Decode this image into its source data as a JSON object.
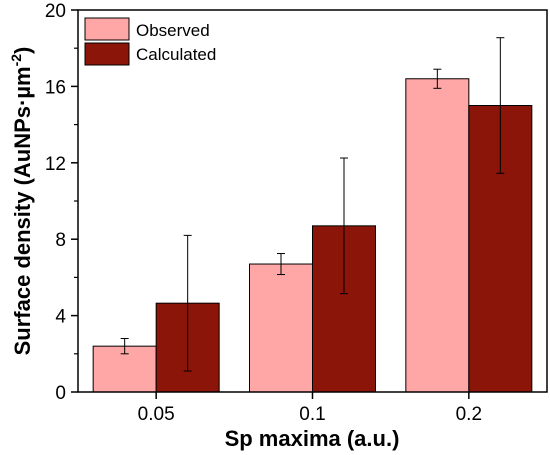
{
  "chart_data": {
    "type": "bar",
    "categories": [
      "0.05",
      "0.1",
      "0.2"
    ],
    "series": [
      {
        "name": "Observed",
        "color": "#ffa6a6",
        "values": [
          2.4,
          6.7,
          16.4
        ],
        "errors": [
          0.4,
          0.55,
          0.5
        ]
      },
      {
        "name": "Calculated",
        "color": "#8b1508",
        "values": [
          4.65,
          8.7,
          15.0
        ],
        "errors": [
          3.55,
          3.55,
          3.55
        ]
      }
    ],
    "xlabel": "Sp maxima (a.u.)",
    "ylabel": "Surface density (AuNPs·µm⁻²)",
    "ylabel_main": "Surface density (AuNPs·µm",
    "ylabel_sup": "-2",
    "ylabel_close": ")",
    "ylim": [
      0,
      20
    ],
    "yticks": [
      "0",
      "4",
      "8",
      "12",
      "16",
      "20"
    ],
    "legend_position": "top-left",
    "grid": false
  }
}
